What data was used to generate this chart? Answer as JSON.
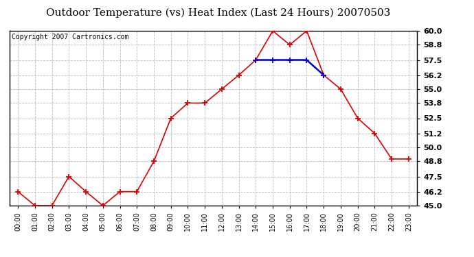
{
  "title": "Outdoor Temperature (vs) Heat Index (Last 24 Hours) 20070503",
  "copyright": "Copyright 2007 Cartronics.com",
  "x_labels": [
    "00:00",
    "01:00",
    "02:00",
    "03:00",
    "04:00",
    "05:00",
    "06:00",
    "07:00",
    "08:00",
    "09:00",
    "10:00",
    "11:00",
    "12:00",
    "13:00",
    "14:00",
    "15:00",
    "16:00",
    "17:00",
    "18:00",
    "19:00",
    "20:00",
    "21:00",
    "22:00",
    "23:00"
  ],
  "temp_values": [
    46.2,
    45.0,
    45.0,
    47.5,
    46.2,
    45.0,
    46.2,
    46.2,
    48.8,
    52.5,
    53.8,
    53.8,
    55.0,
    56.2,
    57.5,
    60.0,
    58.8,
    60.0,
    56.2,
    55.0,
    52.5,
    51.2,
    49.0,
    49.0
  ],
  "heat_values": [
    null,
    null,
    null,
    null,
    null,
    null,
    null,
    null,
    null,
    null,
    null,
    null,
    null,
    null,
    57.5,
    57.5,
    57.5,
    57.5,
    56.2,
    null,
    null,
    null,
    null,
    null
  ],
  "ylim_min": 45.0,
  "ylim_max": 60.0,
  "yticks": [
    45.0,
    46.2,
    47.5,
    48.8,
    50.0,
    51.2,
    52.5,
    53.8,
    55.0,
    56.2,
    57.5,
    58.8,
    60.0
  ],
  "ytick_labels": [
    "45.0",
    "46.2",
    "47.5",
    "48.8",
    "50.0",
    "51.2",
    "52.5",
    "53.8",
    "55.0",
    "56.2",
    "57.5",
    "58.8",
    "60.0"
  ],
  "temp_color": "#dd0000",
  "heat_color": "#0000cc",
  "bg_color": "#ffffff",
  "plot_bg": "#ffffff",
  "grid_color": "#bbbbbb",
  "border_color": "#000000",
  "title_fontsize": 11,
  "copyright_fontsize": 7,
  "tick_fontsize": 7,
  "ytick_fontsize": 8
}
